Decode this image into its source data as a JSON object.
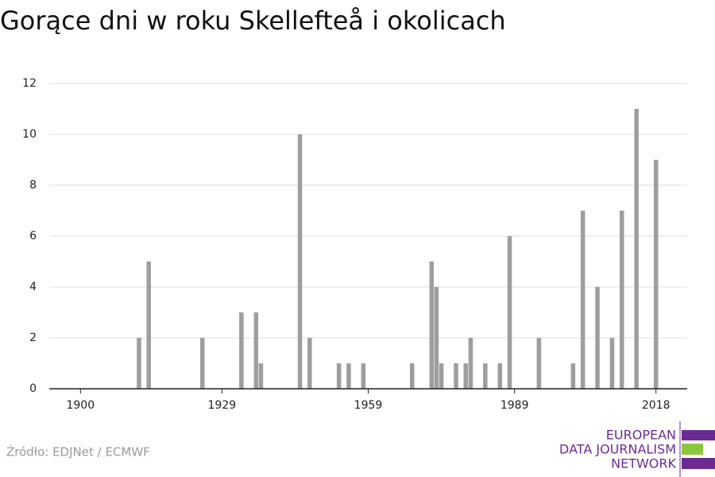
{
  "chart_data": {
    "type": "bar",
    "title": "Gorące dni w roku Skellefteå i okolicach",
    "x": [
      1912,
      1914,
      1925,
      1933,
      1936,
      1937,
      1945,
      1947,
      1953,
      1955,
      1958,
      1968,
      1972,
      1973,
      1974,
      1977,
      1979,
      1980,
      1983,
      1986,
      1988,
      1994,
      2001,
      2003,
      2006,
      2009,
      2011,
      2014,
      2018
    ],
    "values": [
      2,
      5,
      2,
      3,
      3,
      1,
      10,
      2,
      1,
      1,
      1,
      1,
      5,
      4,
      1,
      1,
      1,
      2,
      1,
      1,
      6,
      2,
      1,
      7,
      4,
      2,
      7,
      11,
      9
    ],
    "color": "#9e9e9e",
    "xlim": [
      1893.6,
      2024.4
    ],
    "xticks": [
      1900,
      1929,
      1959,
      1989,
      2018
    ],
    "ylim": [
      0,
      12
    ],
    "yticks": [
      0,
      2,
      4,
      6,
      8,
      10,
      12
    ],
    "grid": true
  },
  "footer": {
    "source": "Źródło: EDJNet / ECMWF",
    "logo": [
      "EUROPEAN",
      "DATA JOURNALISM",
      "NETWORK"
    ]
  }
}
